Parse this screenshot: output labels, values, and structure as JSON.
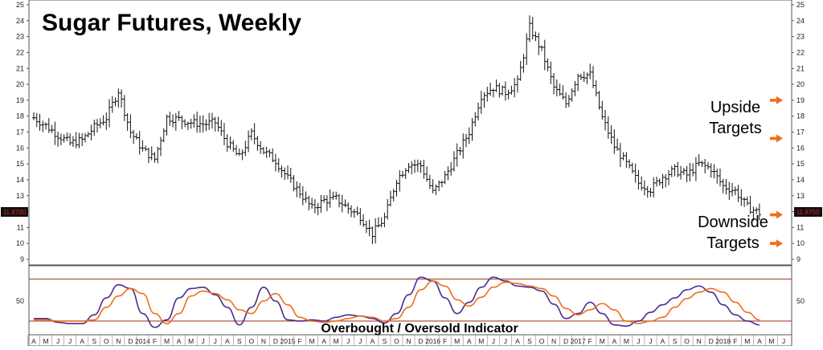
{
  "chart_data": [
    {
      "type": "ohlc",
      "title": "Sugar Futures, Weekly",
      "ylim": [
        9,
        25
      ],
      "y_ticks": [
        9,
        10,
        11,
        12,
        13,
        14,
        15,
        16,
        17,
        18,
        19,
        20,
        21,
        22,
        23,
        24,
        25
      ],
      "last_price_label": "11.8700",
      "last_price": 11.87,
      "annotations": {
        "upside": "Upside\nTargets",
        "downside": "Downside\nTargets"
      },
      "target_arrows": [
        19,
        16.6,
        11.8,
        10
      ],
      "x_axis": {
        "start": "2013-04",
        "labels": [
          "A",
          "M",
          "J",
          "J",
          "A",
          "S",
          "O",
          "N",
          "D",
          "2014",
          "F",
          "M",
          "A",
          "M",
          "J",
          "J",
          "A",
          "S",
          "O",
          "N",
          "D",
          "2015",
          "F",
          "M",
          "A",
          "M",
          "J",
          "J",
          "A",
          "S",
          "O",
          "N",
          "D",
          "2016",
          "F",
          "M",
          "A",
          "M",
          "J",
          "J",
          "A",
          "S",
          "O",
          "N",
          "D",
          "2017",
          "F",
          "M",
          "A",
          "M",
          "J",
          "J",
          "A",
          "S",
          "O",
          "N",
          "D",
          "2018",
          "F",
          "M",
          "A",
          "M",
          "J"
        ]
      },
      "close_path_by_month": [
        17.9,
        17.4,
        16.8,
        16.3,
        16.5,
        17.3,
        17.9,
        19.6,
        17.0,
        15.9,
        15.3,
        17.9,
        17.8,
        17.6,
        17.5,
        17.6,
        16.3,
        15.4,
        16.9,
        15.8,
        15.2,
        14.1,
        13.2,
        12.2,
        12.7,
        12.8,
        12.2,
        11.7,
        10.6,
        11.6,
        14.0,
        15.0,
        14.9,
        13.2,
        14.2,
        15.6,
        17.0,
        19.3,
        19.8,
        19.5,
        20.1,
        23.6,
        22.1,
        19.8,
        18.8,
        20.6,
        20.6,
        17.9,
        16.1,
        15.0,
        13.8,
        13.4,
        14.2,
        14.6,
        14.3,
        15.0,
        14.7,
        13.6,
        13.3,
        12.3,
        11.9
      ]
    },
    {
      "type": "line",
      "title": "Overbought / Oversold Indicator",
      "ylim": [
        0,
        100
      ],
      "y_ticks": [
        50
      ],
      "overbought": 85,
      "oversold": 18,
      "series": [
        {
          "color": "#4b2c8f",
          "values": [
            22,
            22,
            16,
            14,
            14,
            28,
            55,
            76,
            70,
            30,
            8,
            20,
            55,
            70,
            72,
            60,
            40,
            12,
            40,
            72,
            50,
            20,
            18,
            20,
            18,
            24,
            28,
            26,
            22,
            15,
            30,
            60,
            88,
            82,
            55,
            30,
            48,
            72,
            88,
            82,
            74,
            72,
            66,
            45,
            22,
            30,
            48,
            30,
            12,
            10,
            18,
            32,
            44,
            55,
            68,
            74,
            64,
            44,
            28,
            18,
            12
          ]
        },
        {
          "color": "#f26c1c",
          "values": [
            20,
            20,
            18,
            18,
            18,
            20,
            40,
            58,
            70,
            62,
            30,
            14,
            30,
            58,
            66,
            62,
            52,
            36,
            30,
            50,
            62,
            44,
            24,
            18,
            16,
            18,
            22,
            26,
            24,
            18,
            22,
            40,
            68,
            82,
            74,
            52,
            42,
            56,
            72,
            80,
            78,
            74,
            70,
            58,
            38,
            28,
            36,
            46,
            36,
            18,
            14,
            18,
            24,
            40,
            54,
            64,
            70,
            64,
            48,
            32,
            20
          ]
        }
      ]
    }
  ],
  "colors": {
    "price_bars": "#111111",
    "arrow": "#f26c1c",
    "bands": "#a0452a",
    "last_price_box": "#111111",
    "last_price_text": "#e02020"
  }
}
